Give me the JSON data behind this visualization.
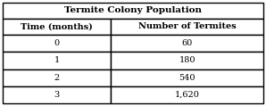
{
  "title": "Termite Colony Population",
  "col_headers": [
    "Time (months)",
    "Number of Termites"
  ],
  "rows": [
    [
      "0",
      "60"
    ],
    [
      "1",
      "180"
    ],
    [
      "2",
      "540"
    ],
    [
      "3",
      "1,620"
    ]
  ],
  "bg_color": "#ffffff",
  "border_color": "#000000",
  "title_fontsize": 7.5,
  "header_fontsize": 7.0,
  "cell_fontsize": 7.0,
  "title_fontweight": "bold",
  "header_fontweight": "bold",
  "col_split": 0.415
}
